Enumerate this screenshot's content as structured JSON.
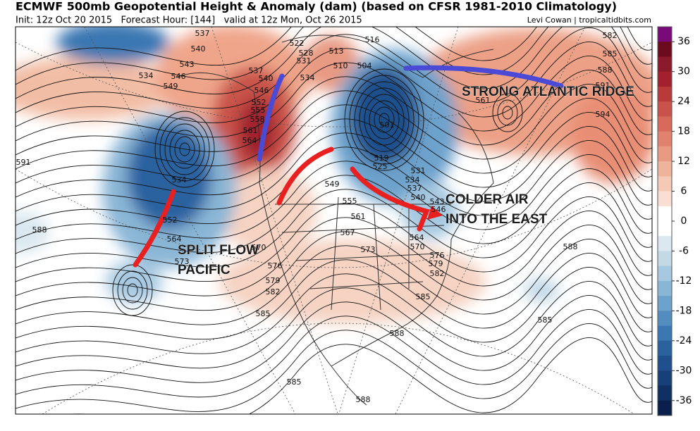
{
  "header": {
    "title": "ECMWF 500mb Geopotential Height & Anomaly (dam) (based on CFSR 1981-2010 Climatology)",
    "subtitle": "Init: 12z Oct 20 2015   Forecast Hour: [144]   valid at 12z Mon, Oct 26 2015",
    "credit": "Levi Cowan | tropicaltidbits.com"
  },
  "annotations": [
    "STRONG ATLANTIC RIDGE",
    "COLDER AIR",
    "INTO THE EAST",
    "SPLIT FLOW",
    "PACIFIC"
  ],
  "colorbar": {
    "ticks": [
      36,
      30,
      24,
      18,
      12,
      6,
      0,
      -6,
      -12,
      -18,
      -24,
      -30,
      -36
    ],
    "colors": [
      "#7a0a7a",
      "#6e0a1e",
      "#8b1a2a",
      "#a3202e",
      "#b83a3a",
      "#c9524a",
      "#d76a5a",
      "#e0826e",
      "#e89a82",
      "#efb39b",
      "#f4c9b5",
      "#f9dfd2",
      "#ffffff",
      "#ffffff",
      "#dbe8f0",
      "#c3d9e8",
      "#a6c8e0",
      "#8ab6d6",
      "#6da2cc",
      "#538dc0",
      "#3b77b2",
      "#2a62a0",
      "#1f4f8c",
      "#173f78",
      "#102f62",
      "#0a1f4c"
    ]
  },
  "contour_labels": [
    "537",
    "540",
    "543",
    "546",
    "549",
    "534",
    "522",
    "528",
    "531",
    "534",
    "513",
    "516",
    "510",
    "504",
    "537",
    "540",
    "546",
    "552",
    "555",
    "558",
    "561",
    "564",
    "501",
    "519",
    "525",
    "531",
    "534",
    "537",
    "540",
    "543",
    "546",
    "549",
    "555",
    "561",
    "567",
    "573",
    "570",
    "576",
    "579",
    "582",
    "585",
    "585",
    "588",
    "585",
    "588",
    "585",
    "588",
    "582",
    "579",
    "576",
    "570",
    "564",
    "534",
    "552",
    "564",
    "573",
    "591",
    "588",
    "582",
    "585",
    "588",
    "591",
    "594",
    "561"
  ]
}
